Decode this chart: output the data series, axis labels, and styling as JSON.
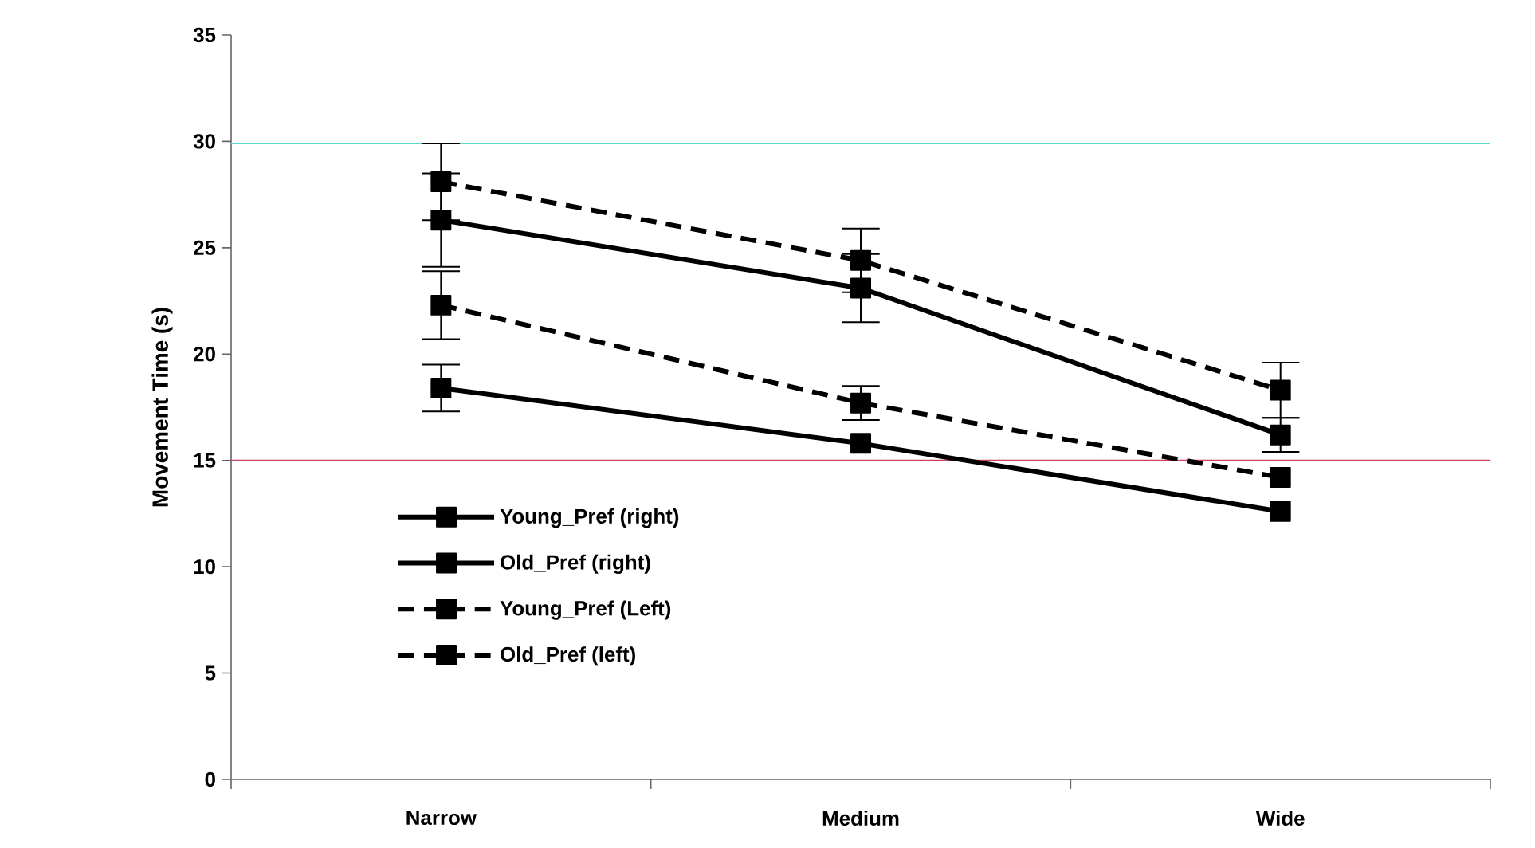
{
  "chart_data": {
    "type": "line",
    "ylabel": "Movement Time (s)",
    "categories": [
      "Narrow",
      "Medium",
      "Wide"
    ],
    "ylim": [
      0,
      35
    ],
    "yticks": [
      0,
      5,
      10,
      15,
      20,
      25,
      30,
      35
    ],
    "marker": "square",
    "legend": "bottom left",
    "series": [
      {
        "name": "Young_Pref (right)",
        "color": "#000000",
        "line_style": "solid",
        "values": [
          18.4,
          15.8,
          12.6
        ],
        "errors": [
          1.1,
          null,
          null
        ]
      },
      {
        "name": "Old_Pref (right)",
        "color": "#000000",
        "line_style": "solid",
        "values": [
          26.3,
          23.1,
          16.2
        ],
        "errors": [
          2.2,
          1.6,
          0.8
        ]
      },
      {
        "name": "Young_Pref (Left)",
        "color": "#000000",
        "line_style": "dashed",
        "values": [
          22.3,
          17.7,
          14.2
        ],
        "errors": [
          1.6,
          0.8,
          null
        ]
      },
      {
        "name": "Old_Pref (left)",
        "color": "#000000",
        "line_style": "dashed",
        "values": [
          28.1,
          24.4,
          18.3
        ],
        "errors": [
          1.8,
          1.5,
          1.3
        ]
      }
    ],
    "ref_lines": [
      {
        "axis": "y",
        "value": 29.9,
        "color": "#5fd8cf"
      },
      {
        "axis": "y",
        "value": 15.0,
        "color": "#d0405a"
      }
    ]
  }
}
